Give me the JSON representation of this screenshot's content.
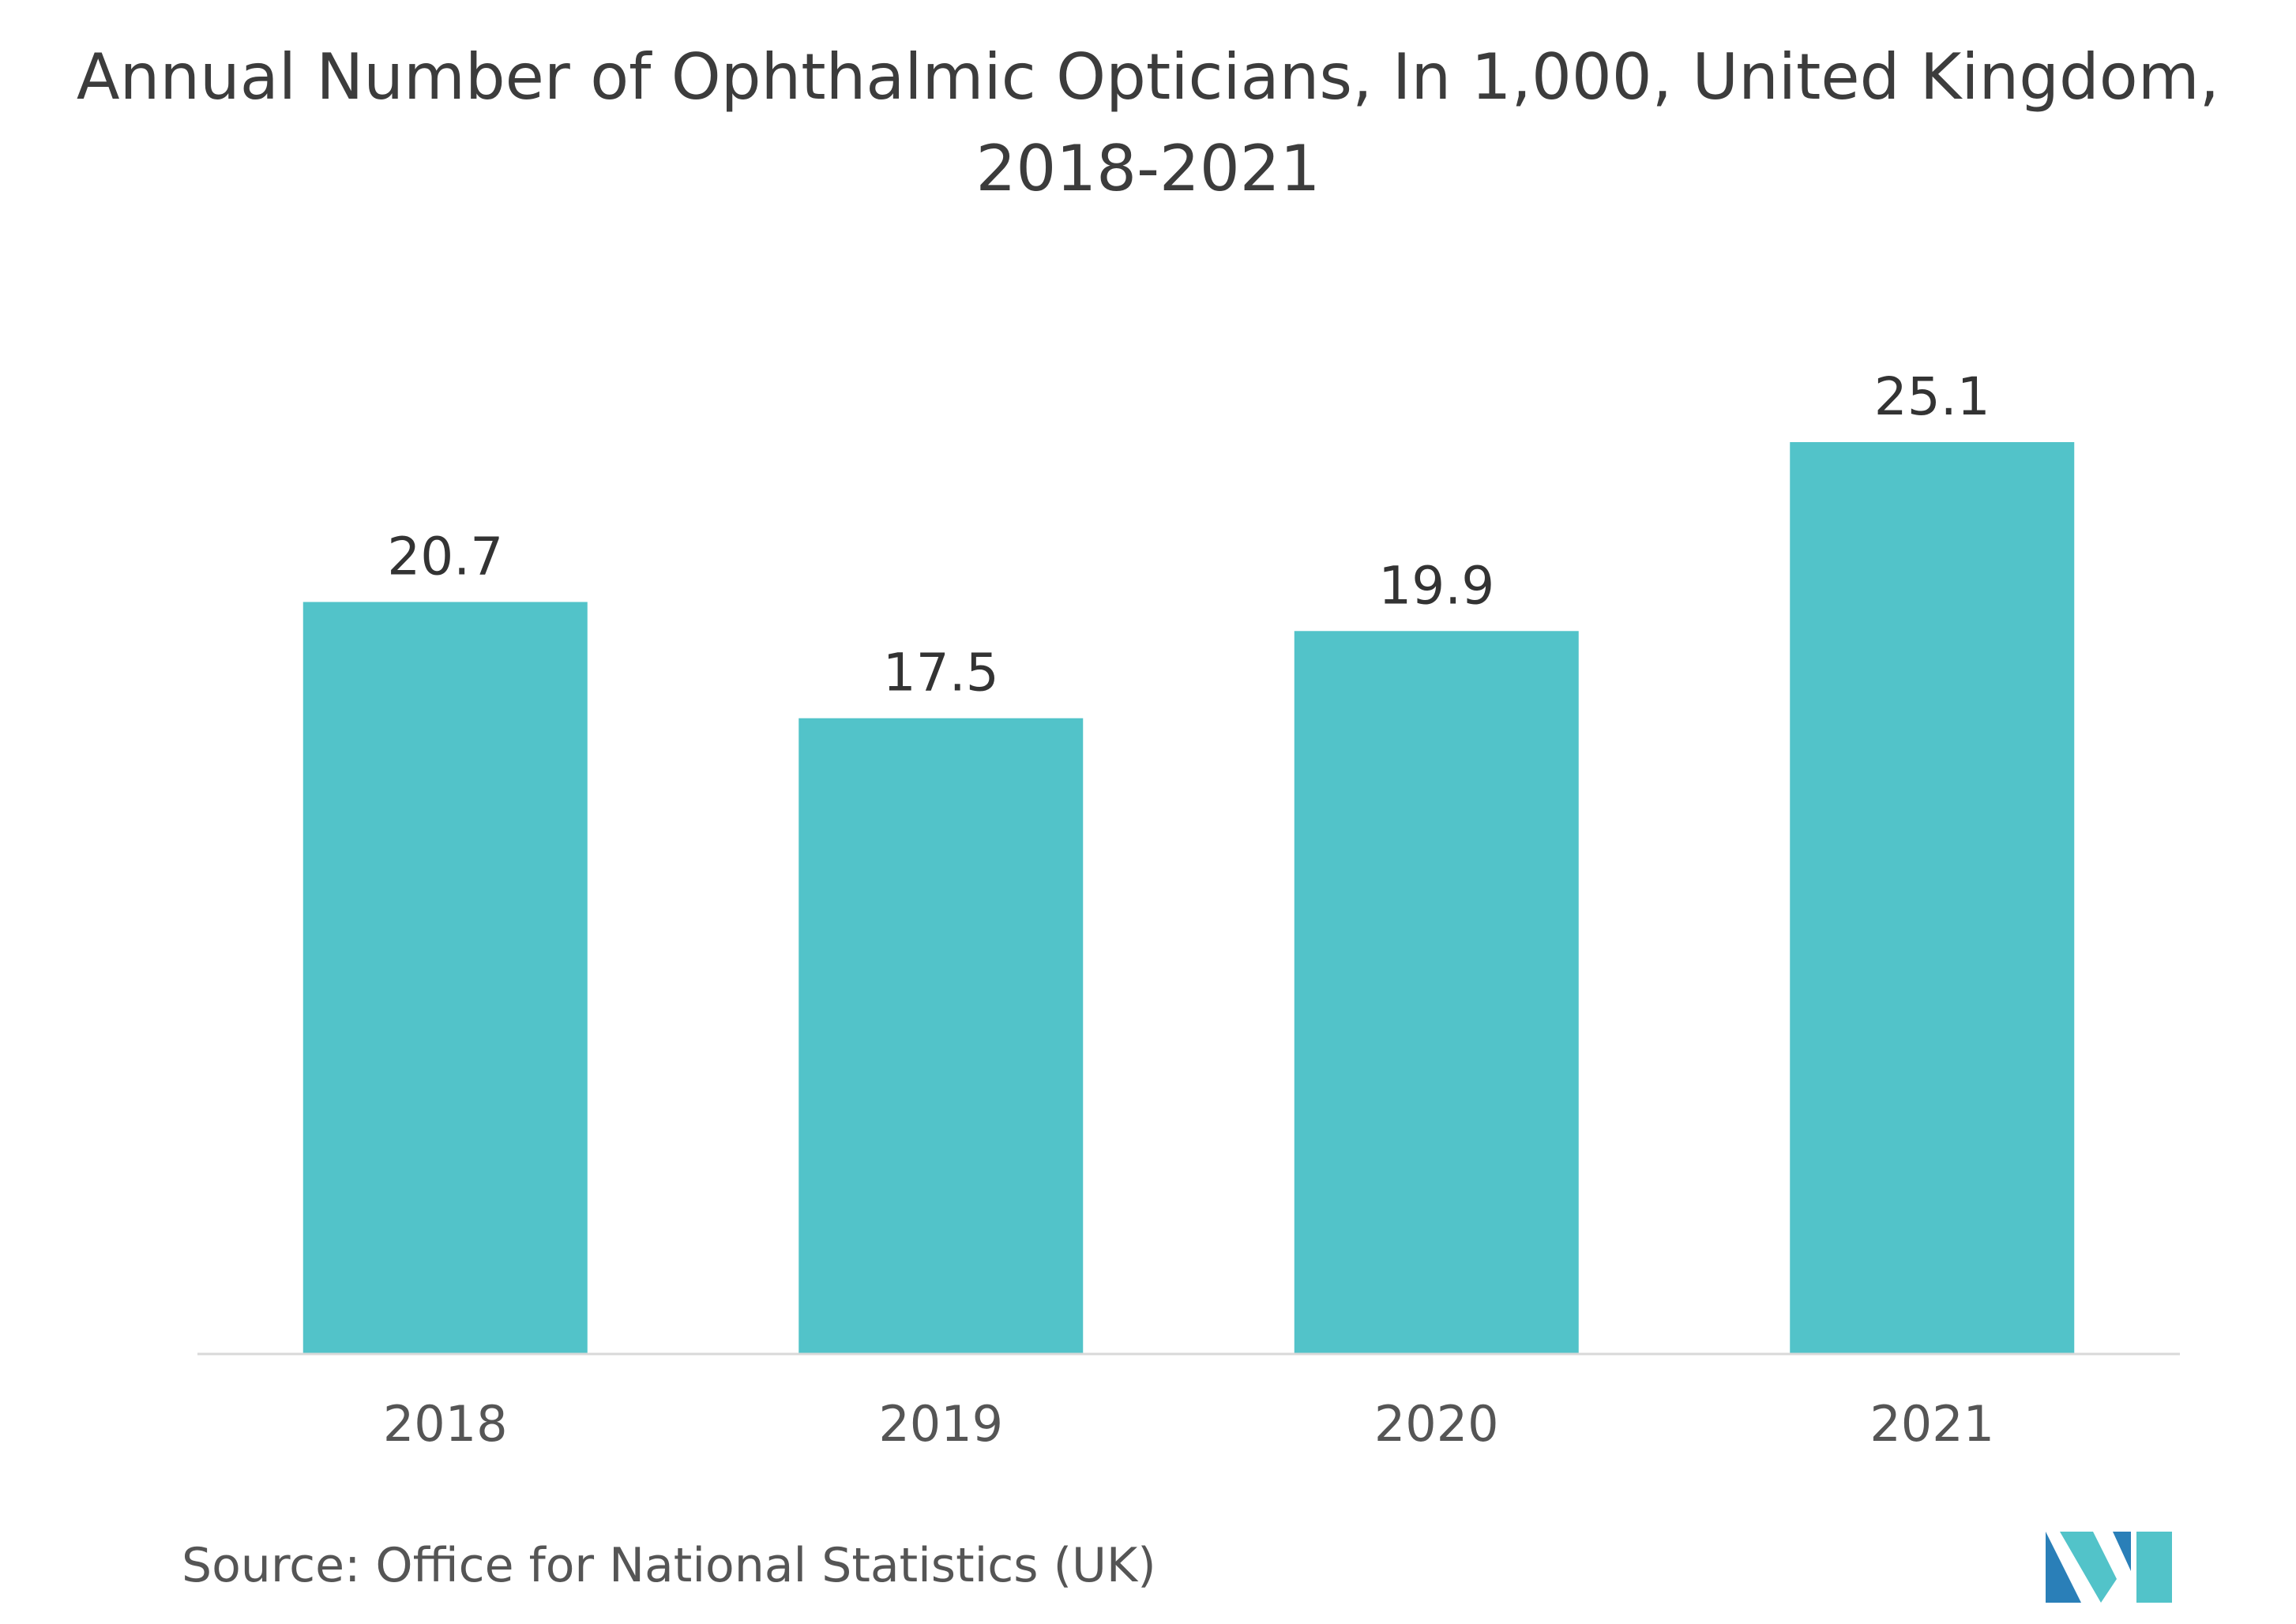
{
  "chart_data": {
    "type": "bar",
    "title_line1": "Annual Number of Ophthalmic Opticians, In 1,000, United Kingdom,",
    "title_line2": "2018-2021",
    "categories": [
      "2018",
      "2019",
      "2020",
      "2021"
    ],
    "values": [
      20.7,
      17.5,
      19.9,
      25.1
    ],
    "data_labels": [
      "20.7",
      "17.5",
      "19.9",
      "25.1"
    ],
    "ylim": [
      0,
      25.1
    ],
    "grid": false,
    "legend": "none",
    "bar_color": "#52c3c9",
    "axis_color": "#d9d9d9"
  },
  "source": "Source: Office for National Statistics (UK)",
  "logo": {
    "icon": "mordor-intelligence-logo",
    "colors": [
      "#2a7fb8",
      "#52c3c9"
    ]
  }
}
